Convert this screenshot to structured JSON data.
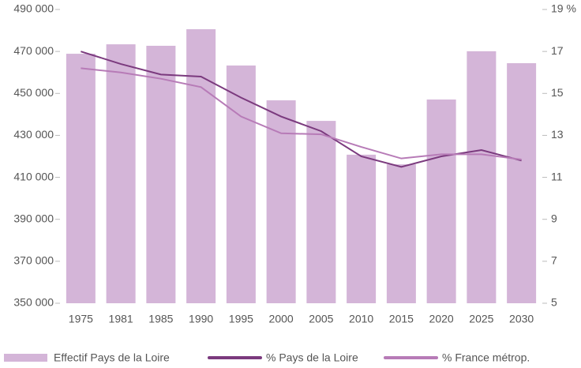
{
  "chart_data": {
    "type": "bar-line",
    "categories": [
      "1975",
      "1981",
      "1985",
      "1990",
      "1995",
      "2000",
      "2005",
      "2010",
      "2015",
      "2020",
      "2025",
      "2030"
    ],
    "series": [
      {
        "name": "Effectif Pays de la Loire",
        "color": "#d4b5d8",
        "type": "bar",
        "values": [
          468900,
          473400,
          472700,
          480600,
          463300,
          446700,
          436900,
          420800,
          416200,
          447100,
          470100,
          464400
        ]
      },
      {
        "name": "% Pays de la Loire",
        "color": "#7b3a7e",
        "type": "line",
        "axis": "y2",
        "values": [
          17.0,
          16.4,
          15.9,
          15.8,
          14.8,
          13.9,
          13.2,
          12.0,
          11.5,
          12.0,
          12.3,
          11.8
        ]
      },
      {
        "name": "% France métrop.",
        "color": "#b77bb7",
        "type": "line",
        "axis": "y2",
        "values": [
          16.2,
          16.0,
          15.7,
          15.3,
          13.9,
          13.1,
          13.05,
          12.45,
          11.9,
          12.1,
          12.1,
          11.85
        ]
      }
    ],
    "ylim": [
      350000,
      490000
    ],
    "yticks": [
      {
        "value": 350000,
        "label": "350 000"
      },
      {
        "value": 370000,
        "label": "370 000"
      },
      {
        "value": 390000,
        "label": "390 000"
      },
      {
        "value": 410000,
        "label": "410 000"
      },
      {
        "value": 430000,
        "label": "430 000"
      },
      {
        "value": 450000,
        "label": "450 000"
      },
      {
        "value": 470000,
        "label": "470 000"
      },
      {
        "value": 490000,
        "label": "490 000"
      }
    ],
    "y2lim": [
      5,
      19
    ],
    "y2ticks": [
      5,
      7,
      9,
      11,
      13,
      15,
      17,
      {
        "value": 19,
        "label": "19 %"
      }
    ],
    "grid": false,
    "legend": "bottom"
  }
}
